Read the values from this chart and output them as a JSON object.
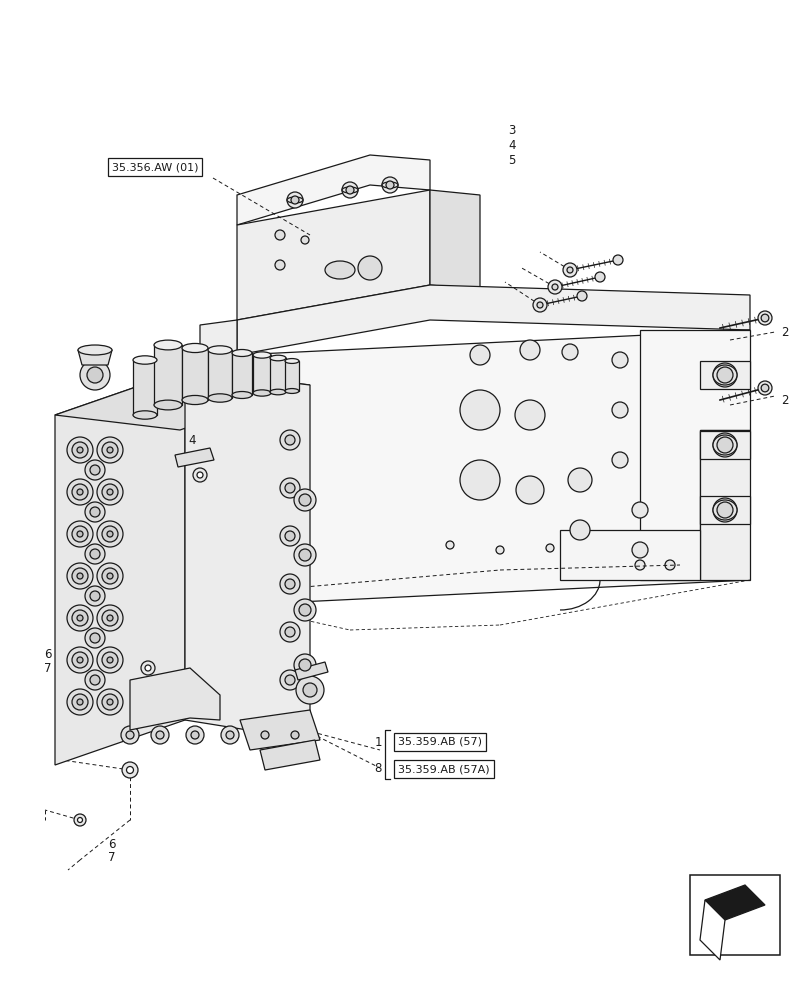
{
  "bg_color": "#ffffff",
  "lc": "#1a1a1a",
  "lw": 0.9,
  "figsize": [
    8.12,
    10.0
  ],
  "dpi": 100,
  "labels": {
    "ref_35356": "35.356.AW (01)",
    "ref_35359_57": "35.359.AB (57)",
    "ref_35359_57a": "35.359.AB (57A)",
    "n1": "1",
    "n2": "2",
    "n3": "3",
    "n4": "4",
    "n5": "5",
    "n6": "6",
    "n7": "7",
    "n8": "8"
  },
  "label_fs": 8.0,
  "num_fs": 8.5
}
